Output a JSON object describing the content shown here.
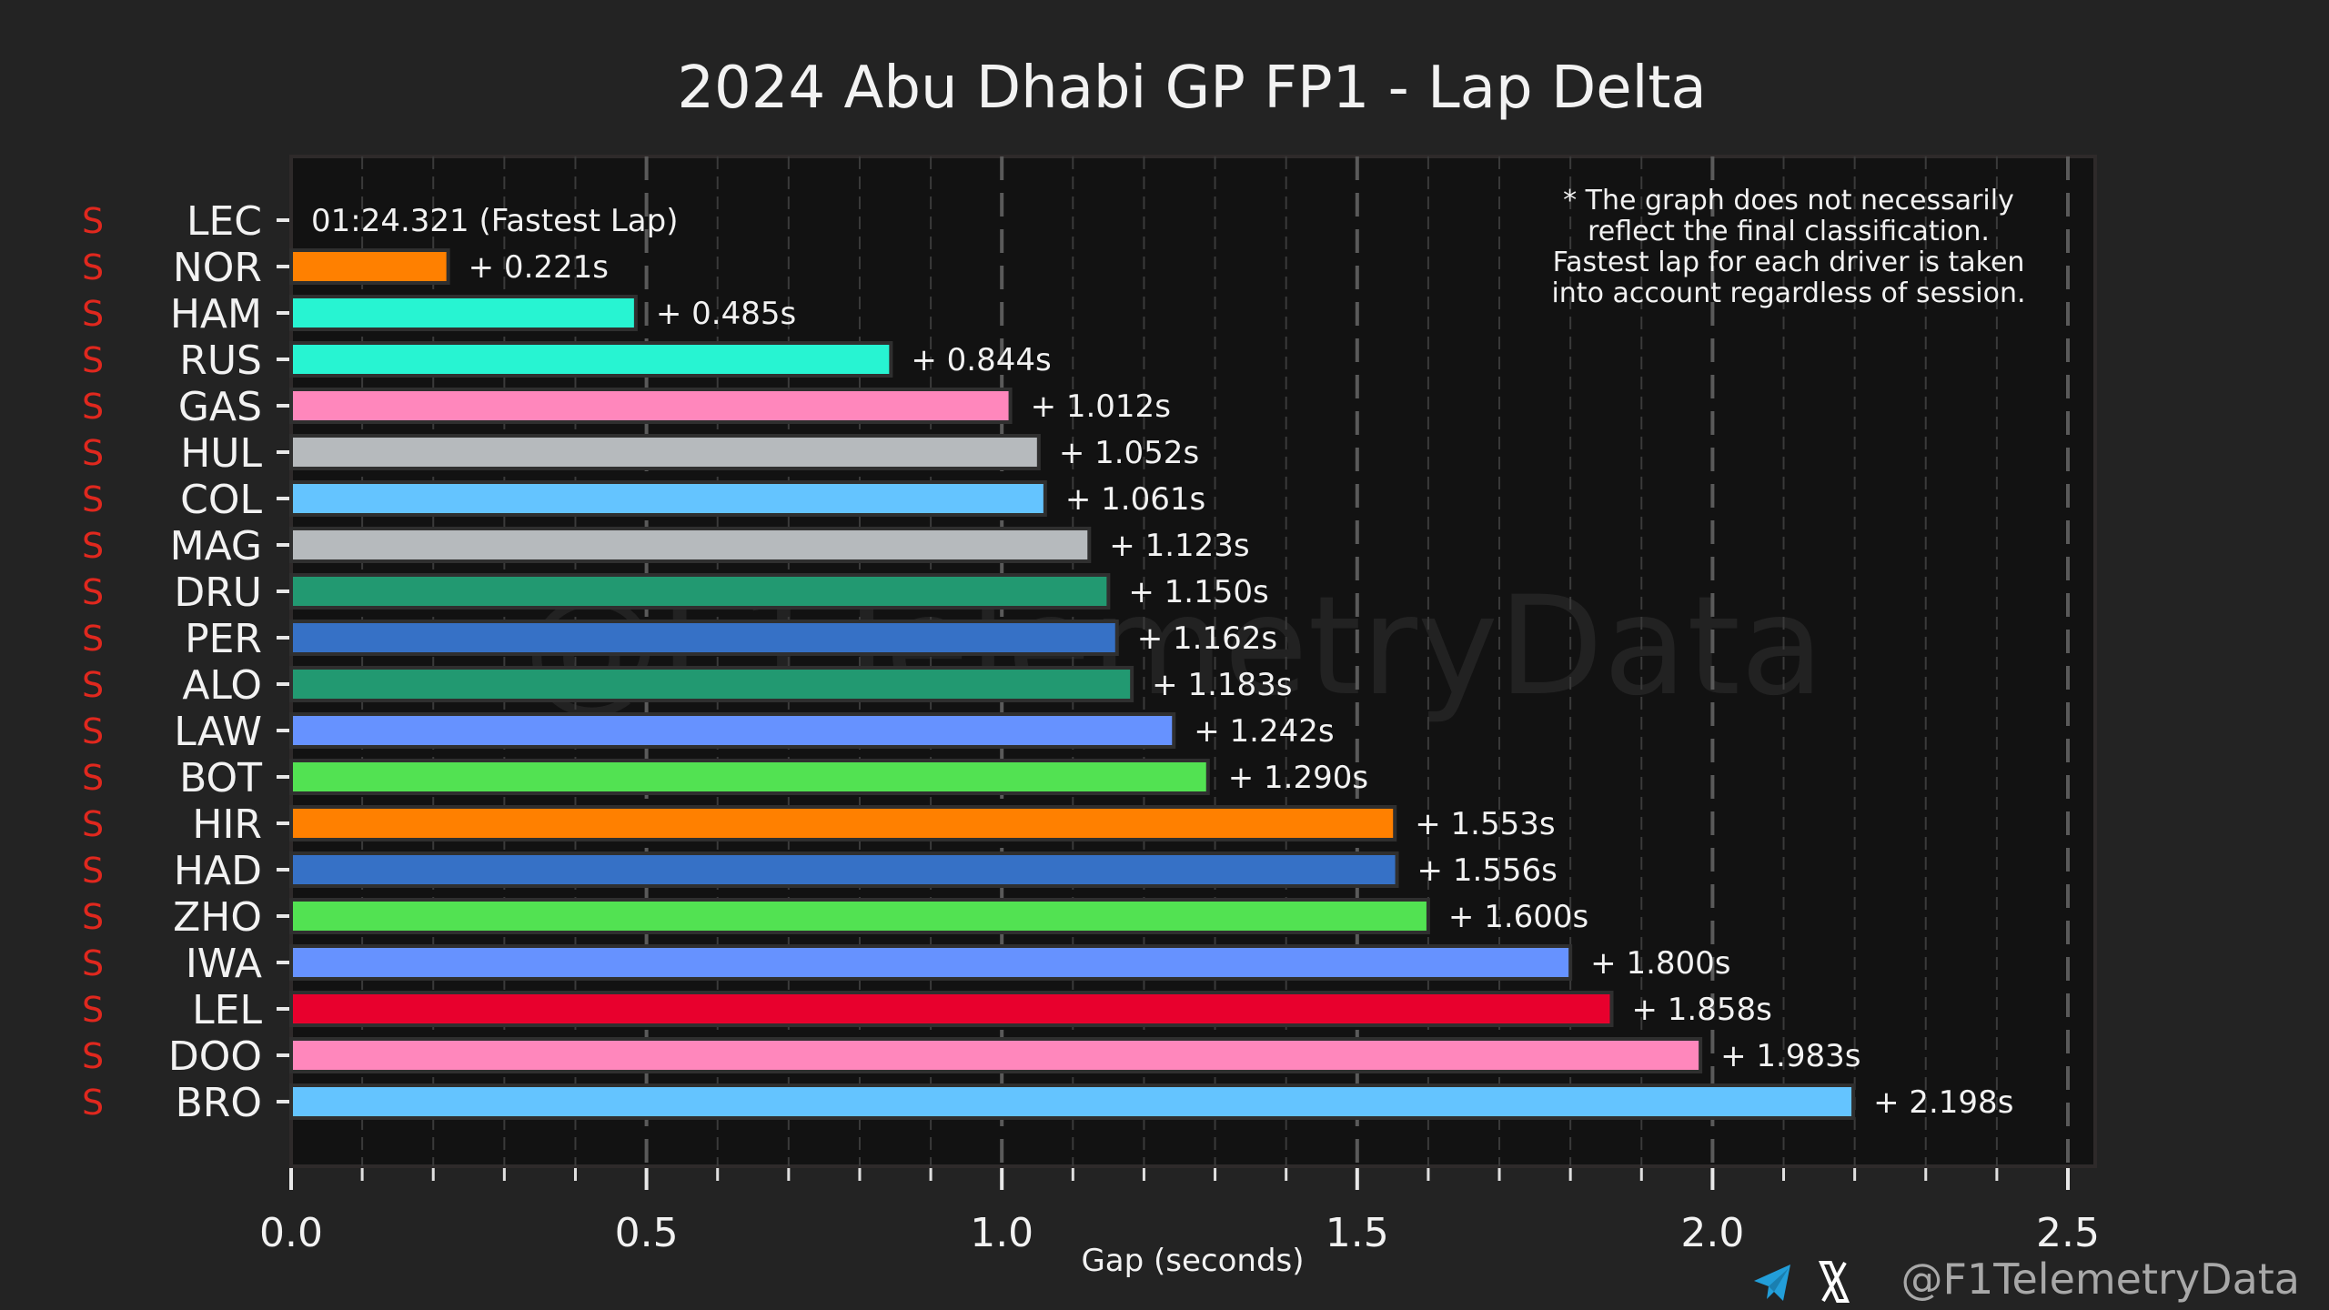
{
  "chart_data": {
    "type": "bar",
    "orientation": "horizontal",
    "title": "2024 Abu Dhabi GP FP1 - Lap Delta",
    "xlabel": "Gap (seconds)",
    "ylabel": "",
    "xlim": [
      0,
      2.5
    ],
    "xticks": [
      "0.0",
      "0.5",
      "1.0",
      "1.5",
      "2.0",
      "2.5"
    ],
    "xtick_values": [
      0,
      0.5,
      1.0,
      1.5,
      2.0,
      2.5
    ],
    "minor_tick_step": 0.1,
    "grid": true,
    "fastest_lap_label": "01:24.321 (Fastest Lap)",
    "tyre_compound_label": "S",
    "tyre_color": "#e0281e",
    "categories": [
      "LEC",
      "NOR",
      "HAM",
      "RUS",
      "GAS",
      "HUL",
      "COL",
      "MAG",
      "DRU",
      "PER",
      "ALO",
      "LAW",
      "BOT",
      "HIR",
      "HAD",
      "ZHO",
      "IWA",
      "LEL",
      "DOO",
      "BRO"
    ],
    "values": [
      0,
      0.221,
      0.485,
      0.844,
      1.012,
      1.052,
      1.061,
      1.123,
      1.15,
      1.162,
      1.183,
      1.242,
      1.29,
      1.553,
      1.556,
      1.6,
      1.8,
      1.858,
      1.983,
      2.198
    ],
    "labels": [
      "01:24.321 (Fastest Lap)",
      "+ 0.221s",
      "+ 0.485s",
      "+ 0.844s",
      "+ 1.012s",
      "+ 1.052s",
      "+ 1.061s",
      "+ 1.123s",
      "+ 1.150s",
      "+ 1.162s",
      "+ 1.183s",
      "+ 1.242s",
      "+ 1.290s",
      "+ 1.553s",
      "+ 1.556s",
      "+ 1.600s",
      "+ 1.800s",
      "+ 1.858s",
      "+ 1.983s",
      "+ 2.198s"
    ],
    "colors": [
      "#e8002d",
      "#ff8000",
      "#27f4d2",
      "#27f4d2",
      "#ff87bc",
      "#b6babd",
      "#64c4ff",
      "#b6babd",
      "#229971",
      "#3671c6",
      "#229971",
      "#6692ff",
      "#52e252",
      "#ff8000",
      "#3671c6",
      "#52e252",
      "#6692ff",
      "#e8002d",
      "#ff87bc",
      "#64c4ff"
    ],
    "annotation": [
      "* The graph does not necessarily",
      "reflect the final classification.",
      "Fastest lap for each driver is taken",
      "into account regardless of session."
    ],
    "annotation_placement": "top-right"
  },
  "watermark": "@F1TelemetryData",
  "footer": {
    "handle": "@F1TelemetryData",
    "icons": [
      "telegram-icon",
      "x-icon"
    ],
    "telegram_color": "#229ed9"
  }
}
